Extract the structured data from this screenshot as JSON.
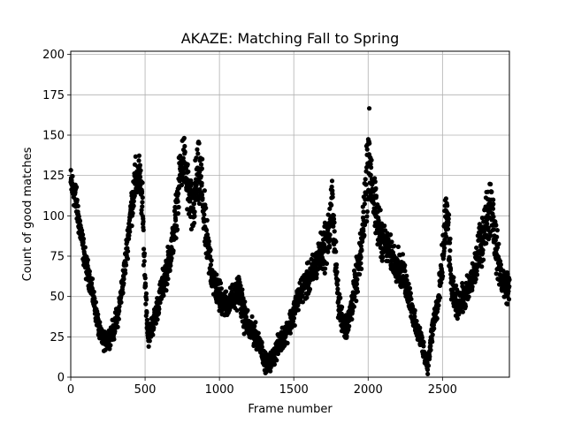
{
  "chart_data": {
    "type": "scatter",
    "title": "AKAZE: Matching Fall to Spring",
    "xlabel": "Frame number",
    "ylabel": "Count of good matches",
    "xlim": [
      0,
      2950
    ],
    "ylim": [
      0,
      202
    ],
    "xticks": [
      0,
      500,
      1000,
      1500,
      2000,
      2500
    ],
    "yticks": [
      0,
      25,
      50,
      75,
      100,
      125,
      150,
      175,
      200
    ],
    "grid": true,
    "legend": "none",
    "marker_color": "#000000",
    "grid_color": "#b0b0b0",
    "profile_x": [
      0,
      25,
      50,
      75,
      100,
      130,
      160,
      200,
      230,
      260,
      290,
      320,
      360,
      400,
      430,
      460,
      480,
      500,
      520,
      540,
      560,
      600,
      640,
      680,
      720,
      740,
      760,
      790,
      820,
      850,
      880,
      900,
      920,
      940,
      960,
      980,
      1000,
      1050,
      1100,
      1130,
      1160,
      1200,
      1250,
      1280,
      1300,
      1330,
      1360,
      1400,
      1430,
      1460,
      1500,
      1530,
      1560,
      1600,
      1650,
      1700,
      1740,
      1760,
      1780,
      1800,
      1830,
      1860,
      1900,
      1950,
      1980,
      2000,
      2020,
      2050,
      2080,
      2100,
      2130,
      2160,
      2200,
      2250,
      2290,
      2320,
      2350,
      2380,
      2400,
      2420,
      2440,
      2470,
      2500,
      2520,
      2540,
      2560,
      2600,
      2650,
      2700,
      2750,
      2800,
      2830,
      2860,
      2900,
      2950
    ],
    "profile_y": [
      120,
      115,
      100,
      85,
      70,
      60,
      45,
      25,
      22,
      25,
      30,
      40,
      65,
      100,
      120,
      125,
      110,
      60,
      25,
      30,
      35,
      50,
      65,
      80,
      110,
      130,
      135,
      115,
      100,
      125,
      120,
      95,
      80,
      70,
      60,
      55,
      50,
      45,
      50,
      55,
      40,
      30,
      25,
      20,
      10,
      8,
      12,
      20,
      25,
      30,
      40,
      50,
      55,
      60,
      70,
      80,
      90,
      110,
      75,
      45,
      35,
      30,
      50,
      75,
      110,
      140,
      125,
      100,
      90,
      85,
      80,
      75,
      70,
      60,
      45,
      30,
      25,
      15,
      8,
      20,
      35,
      45,
      70,
      100,
      90,
      55,
      45,
      50,
      60,
      80,
      100,
      110,
      80,
      60,
      55
    ],
    "spread": [
      15,
      15,
      15,
      12,
      12,
      10,
      10,
      8,
      8,
      8,
      10,
      10,
      12,
      15,
      20,
      20,
      20,
      15,
      10,
      10,
      10,
      12,
      15,
      15,
      20,
      25,
      25,
      25,
      25,
      30,
      30,
      25,
      20,
      20,
      15,
      15,
      15,
      12,
      12,
      15,
      15,
      12,
      10,
      8,
      8,
      8,
      8,
      10,
      10,
      10,
      12,
      12,
      12,
      15,
      15,
      20,
      25,
      25,
      20,
      15,
      12,
      12,
      15,
      20,
      30,
      45,
      35,
      25,
      20,
      18,
      15,
      15,
      15,
      15,
      12,
      10,
      10,
      8,
      8,
      10,
      12,
      15,
      20,
      30,
      25,
      15,
      12,
      12,
      15,
      20,
      25,
      30,
      20,
      15,
      15
    ],
    "point_count": 2950
  }
}
